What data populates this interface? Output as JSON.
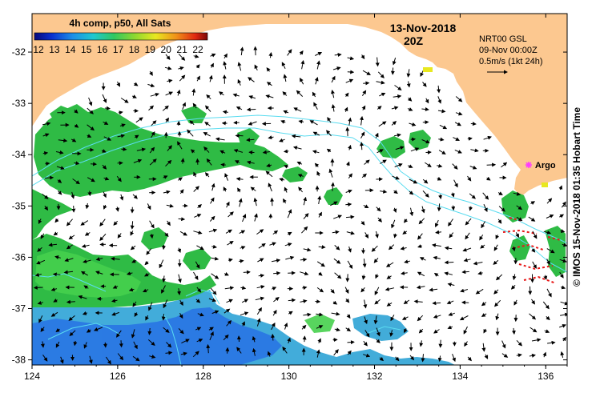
{
  "header": {
    "product": "4h comp, p50, All Sats",
    "date": "13-Nov-2018",
    "time": "20Z"
  },
  "colorbar": {
    "tick_labels": [
      "12",
      "13",
      "14",
      "15",
      "16",
      "17",
      "18",
      "19",
      "20",
      "21",
      "22"
    ],
    "min": 12,
    "max": 22
  },
  "current_legend": {
    "source": "NRT00 GSL",
    "valid": "09-Nov 00:00Z",
    "scale": "0.5m/s (1kt 24h)"
  },
  "argo": {
    "label": "Argo",
    "lon": 135.6,
    "lat": -34.2
  },
  "credit": "© IMOS 15-Nov-2018 01:35 Hobart Time",
  "axes": {
    "x_ticks": [
      "124",
      "126",
      "128",
      "130",
      "132",
      "134",
      "136"
    ],
    "x_values": [
      124,
      126,
      128,
      130,
      132,
      134,
      136
    ],
    "y_ticks": [
      "-32",
      "-33",
      "-34",
      "-35",
      "-36",
      "-37",
      "-38"
    ],
    "y_values": [
      -32,
      -33,
      -34,
      -35,
      -36,
      -37,
      -38
    ],
    "xlim": [
      124,
      136.5
    ],
    "ylim": [
      -38.1,
      -31.25
    ]
  },
  "colors": {
    "land": "#fcc890",
    "sst_green": "#24b83c",
    "sst_lightgreen": "#3cd24a",
    "sst_blue": "#2a78e4",
    "sst_cyan": "#38a8d8",
    "contour": "#5adcf0",
    "argo": "#ff3cff",
    "drifter": "#e81818"
  }
}
